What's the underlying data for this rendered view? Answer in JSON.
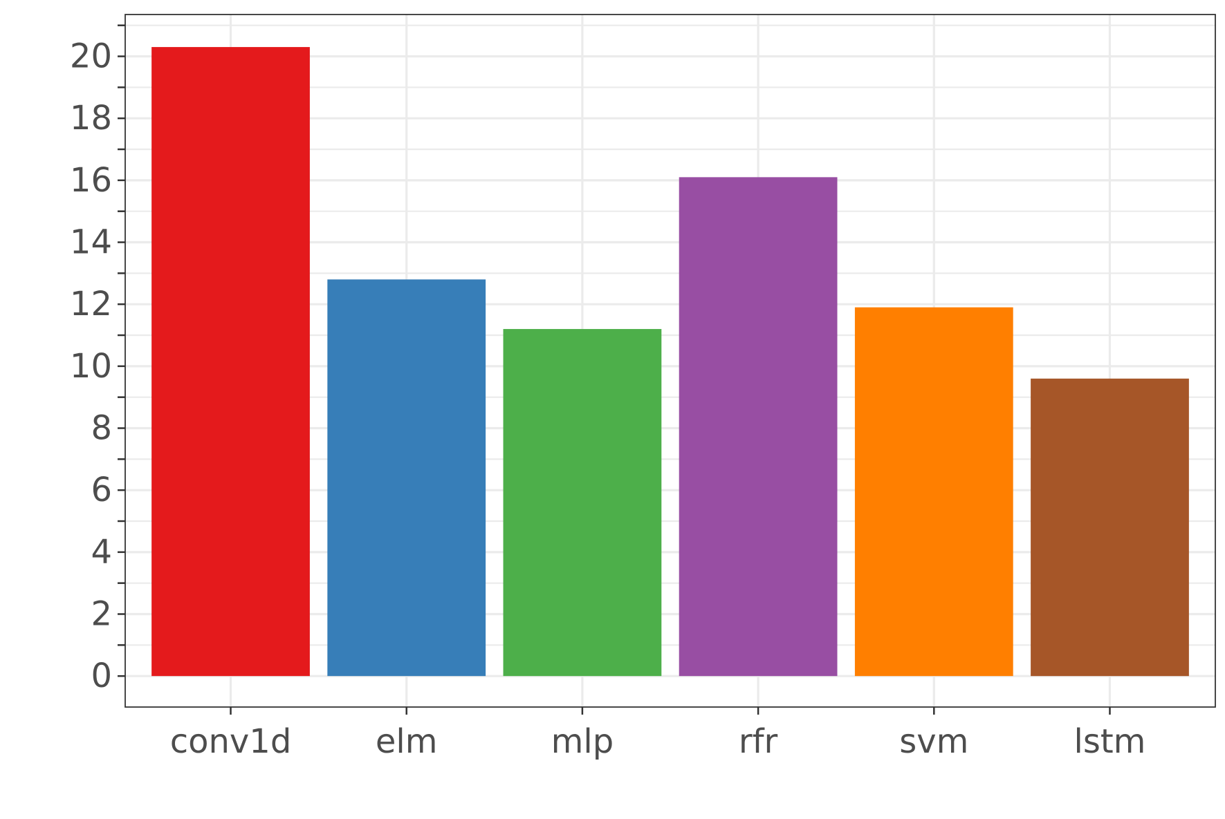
{
  "chart_data": {
    "type": "bar",
    "title": "",
    "xlabel": "",
    "ylabel": "",
    "categories": [
      "conv1d",
      "elm",
      "mlp",
      "rfr",
      "svm",
      "lstm"
    ],
    "values": [
      20.3,
      12.8,
      11.2,
      16.1,
      11.9,
      9.6
    ],
    "colors": [
      "#e41a1c",
      "#377eb8",
      "#4daf4a",
      "#984ea3",
      "#ff7f00",
      "#a65628"
    ],
    "ylim": [
      -1,
      21.35
    ],
    "yticks": [
      0,
      2,
      4,
      6,
      8,
      10,
      12,
      14,
      16,
      18,
      20
    ],
    "ytick_labels": [
      "0",
      "2",
      "4",
      "6",
      "8",
      "10",
      "12",
      "14",
      "16",
      "18",
      "20"
    ],
    "grid": true,
    "legend": "none"
  }
}
